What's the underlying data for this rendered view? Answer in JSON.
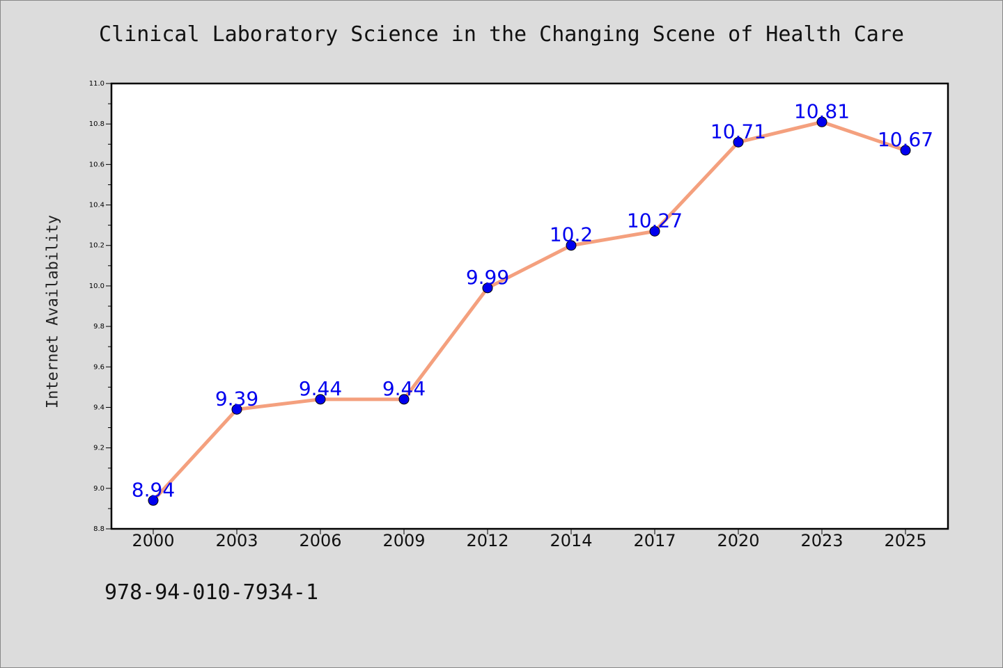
{
  "chart_data": {
    "type": "line",
    "title": "Clinical Laboratory Science in the Changing Scene of Health Care",
    "xlabel": "",
    "ylabel": "Internet Availability",
    "categories": [
      "2000",
      "2003",
      "2006",
      "2009",
      "2012",
      "2014",
      "2017",
      "2020",
      "2023",
      "2025"
    ],
    "series": [
      {
        "values": [
          8.94,
          9.39,
          9.44,
          9.44,
          9.99,
          10.2,
          10.27,
          10.71,
          10.81,
          10.67
        ]
      }
    ],
    "data_labels": [
      "8.94",
      "9.39",
      "9.44",
      "9.44",
      "9.99",
      "10.2",
      "10.27",
      "10.71",
      "10.81",
      "10.67"
    ],
    "ylim": [
      8.8,
      11.0
    ],
    "yticks": [
      "8.8",
      "9.0",
      "9.2",
      "9.4",
      "9.6",
      "9.8",
      "10.0",
      "10.2",
      "10.4",
      "10.6",
      "10.8",
      "11.0"
    ],
    "grid": false,
    "line_color": "#f4a07e",
    "marker_color": "#0000ee",
    "label_color": "#0000ee"
  },
  "footer": {
    "code": "978-94-010-7934-1"
  }
}
